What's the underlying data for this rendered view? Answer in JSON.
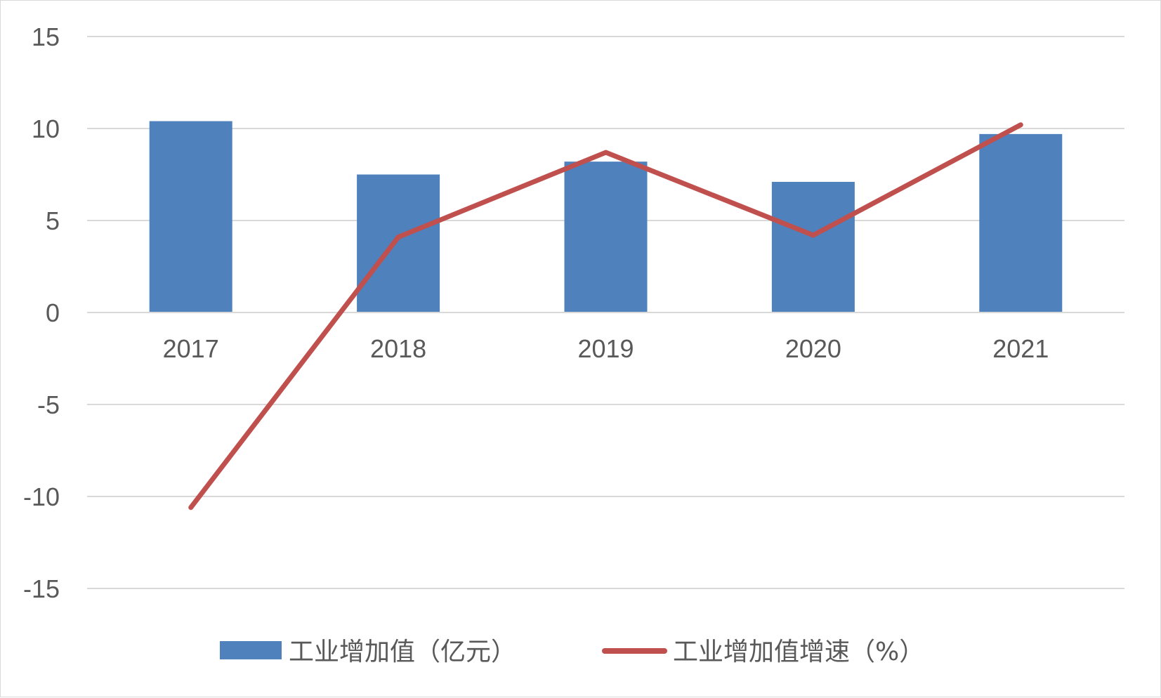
{
  "chart_data": {
    "type": "bar+line",
    "title": "",
    "xlabel": "",
    "ylabel": "",
    "categories": [
      "2017",
      "2018",
      "2019",
      "2020",
      "2021"
    ],
    "ylim": [
      -15,
      15
    ],
    "yticks": [
      "15",
      "10",
      "5",
      "0",
      "-5",
      "-10",
      "-15"
    ],
    "grid": true,
    "legend_position": "bottom",
    "series": [
      {
        "name": "工业增加值（亿元）",
        "type": "bar",
        "color": "#4f81bd",
        "values": [
          10.4,
          7.5,
          8.2,
          7.1,
          9.7
        ]
      },
      {
        "name": "工业增加值增速（%）",
        "type": "line",
        "color": "#c0504d",
        "values": [
          -10.6,
          4.1,
          8.7,
          4.2,
          10.2
        ]
      }
    ]
  }
}
